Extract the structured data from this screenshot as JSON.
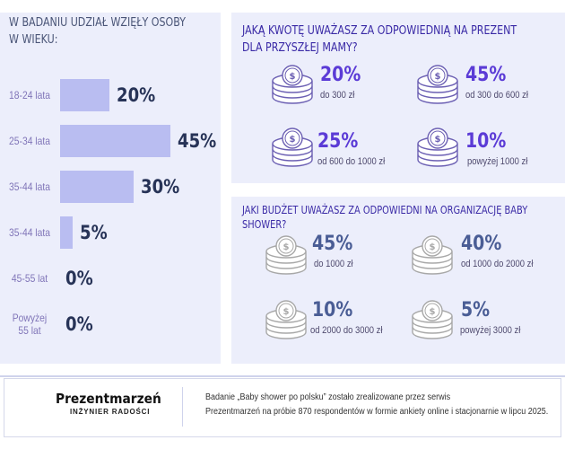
{
  "age_section": {
    "title_line1": "W badaniu udział wzięły osoby",
    "title_line2": "w wieku:"
  },
  "gift_section": {
    "title_line1": "Jaką kwotę uważasz za odpowiednią na prezent",
    "title_line2": "dla przyszłej mamy?"
  },
  "shower_section": {
    "title_line1": "Jaki budżet uważasz za odpowiedni na organizację baby",
    "title_line2": "shower?"
  },
  "colors": {
    "bar": "#b9bdf1",
    "panel": "#eceefb",
    "gift_accent": "#5b3bd6",
    "shower_accent": "#4a5d95",
    "coin_gift": "#6b5fb3",
    "coin_shower": "#a8a8a8"
  },
  "icons": {
    "coin_stack": "coin-stack-icon"
  },
  "chart_data": [
    {
      "type": "bar",
      "orientation": "horizontal",
      "title": "W badaniu udział wzięły osoby w wieku:",
      "categories": [
        "18-24 lata",
        "25-34 lata",
        "35-44 lata",
        "35-44 lata",
        "45-55 lat",
        "Powyżej 55 lat"
      ],
      "category_lines": [
        [
          "18-24 lata"
        ],
        [
          "25-34 lata"
        ],
        [
          "35-44 lata"
        ],
        [
          "35-44 lata"
        ],
        [
          "45-55 lat"
        ],
        [
          "Powyżej",
          "55 lat"
        ]
      ],
      "values": [
        20,
        45,
        30,
        5,
        0,
        0
      ],
      "value_labels": [
        "20%",
        "45%",
        "30%",
        "5%",
        "0%",
        "0%"
      ],
      "xlim": [
        0,
        45
      ]
    },
    {
      "type": "table",
      "title": "Jaką kwotę uważasz za odpowiednią na prezent dla przyszłej mamy?",
      "items": [
        {
          "value": 20,
          "label": "20%",
          "range": "do 300 zł"
        },
        {
          "value": 45,
          "label": "45%",
          "range": "od 300 do 600 zł"
        },
        {
          "value": 25,
          "label": "25%",
          "range": "od 600 do 1000 zł"
        },
        {
          "value": 10,
          "label": "10%",
          "range": "powyżej 1000 zł"
        }
      ]
    },
    {
      "type": "table",
      "title": "Jaki budżet uważasz za odpowiedni na organizację baby shower?",
      "items": [
        {
          "value": 45,
          "label": "45%",
          "range": "do 1000 zł"
        },
        {
          "value": 40,
          "label": "40%",
          "range": "od 1000 do 2000 zł"
        },
        {
          "value": 10,
          "label": "10%",
          "range": "od 2000 do 3000 zł"
        },
        {
          "value": 5,
          "label": "5%",
          "range": "powyżej 3000 zł"
        }
      ]
    }
  ],
  "footer": {
    "brand": "Prezentmarzeń",
    "tagline": "INŻYNIER RADOŚCI",
    "text_line1": "Badanie „Baby shower po polsku” zostało zrealizowane przez serwis",
    "text_line2": "Prezentmarzeń na próbie 870 respondentów w formie ankiety online i stacjonarnie w lipcu 2025."
  }
}
